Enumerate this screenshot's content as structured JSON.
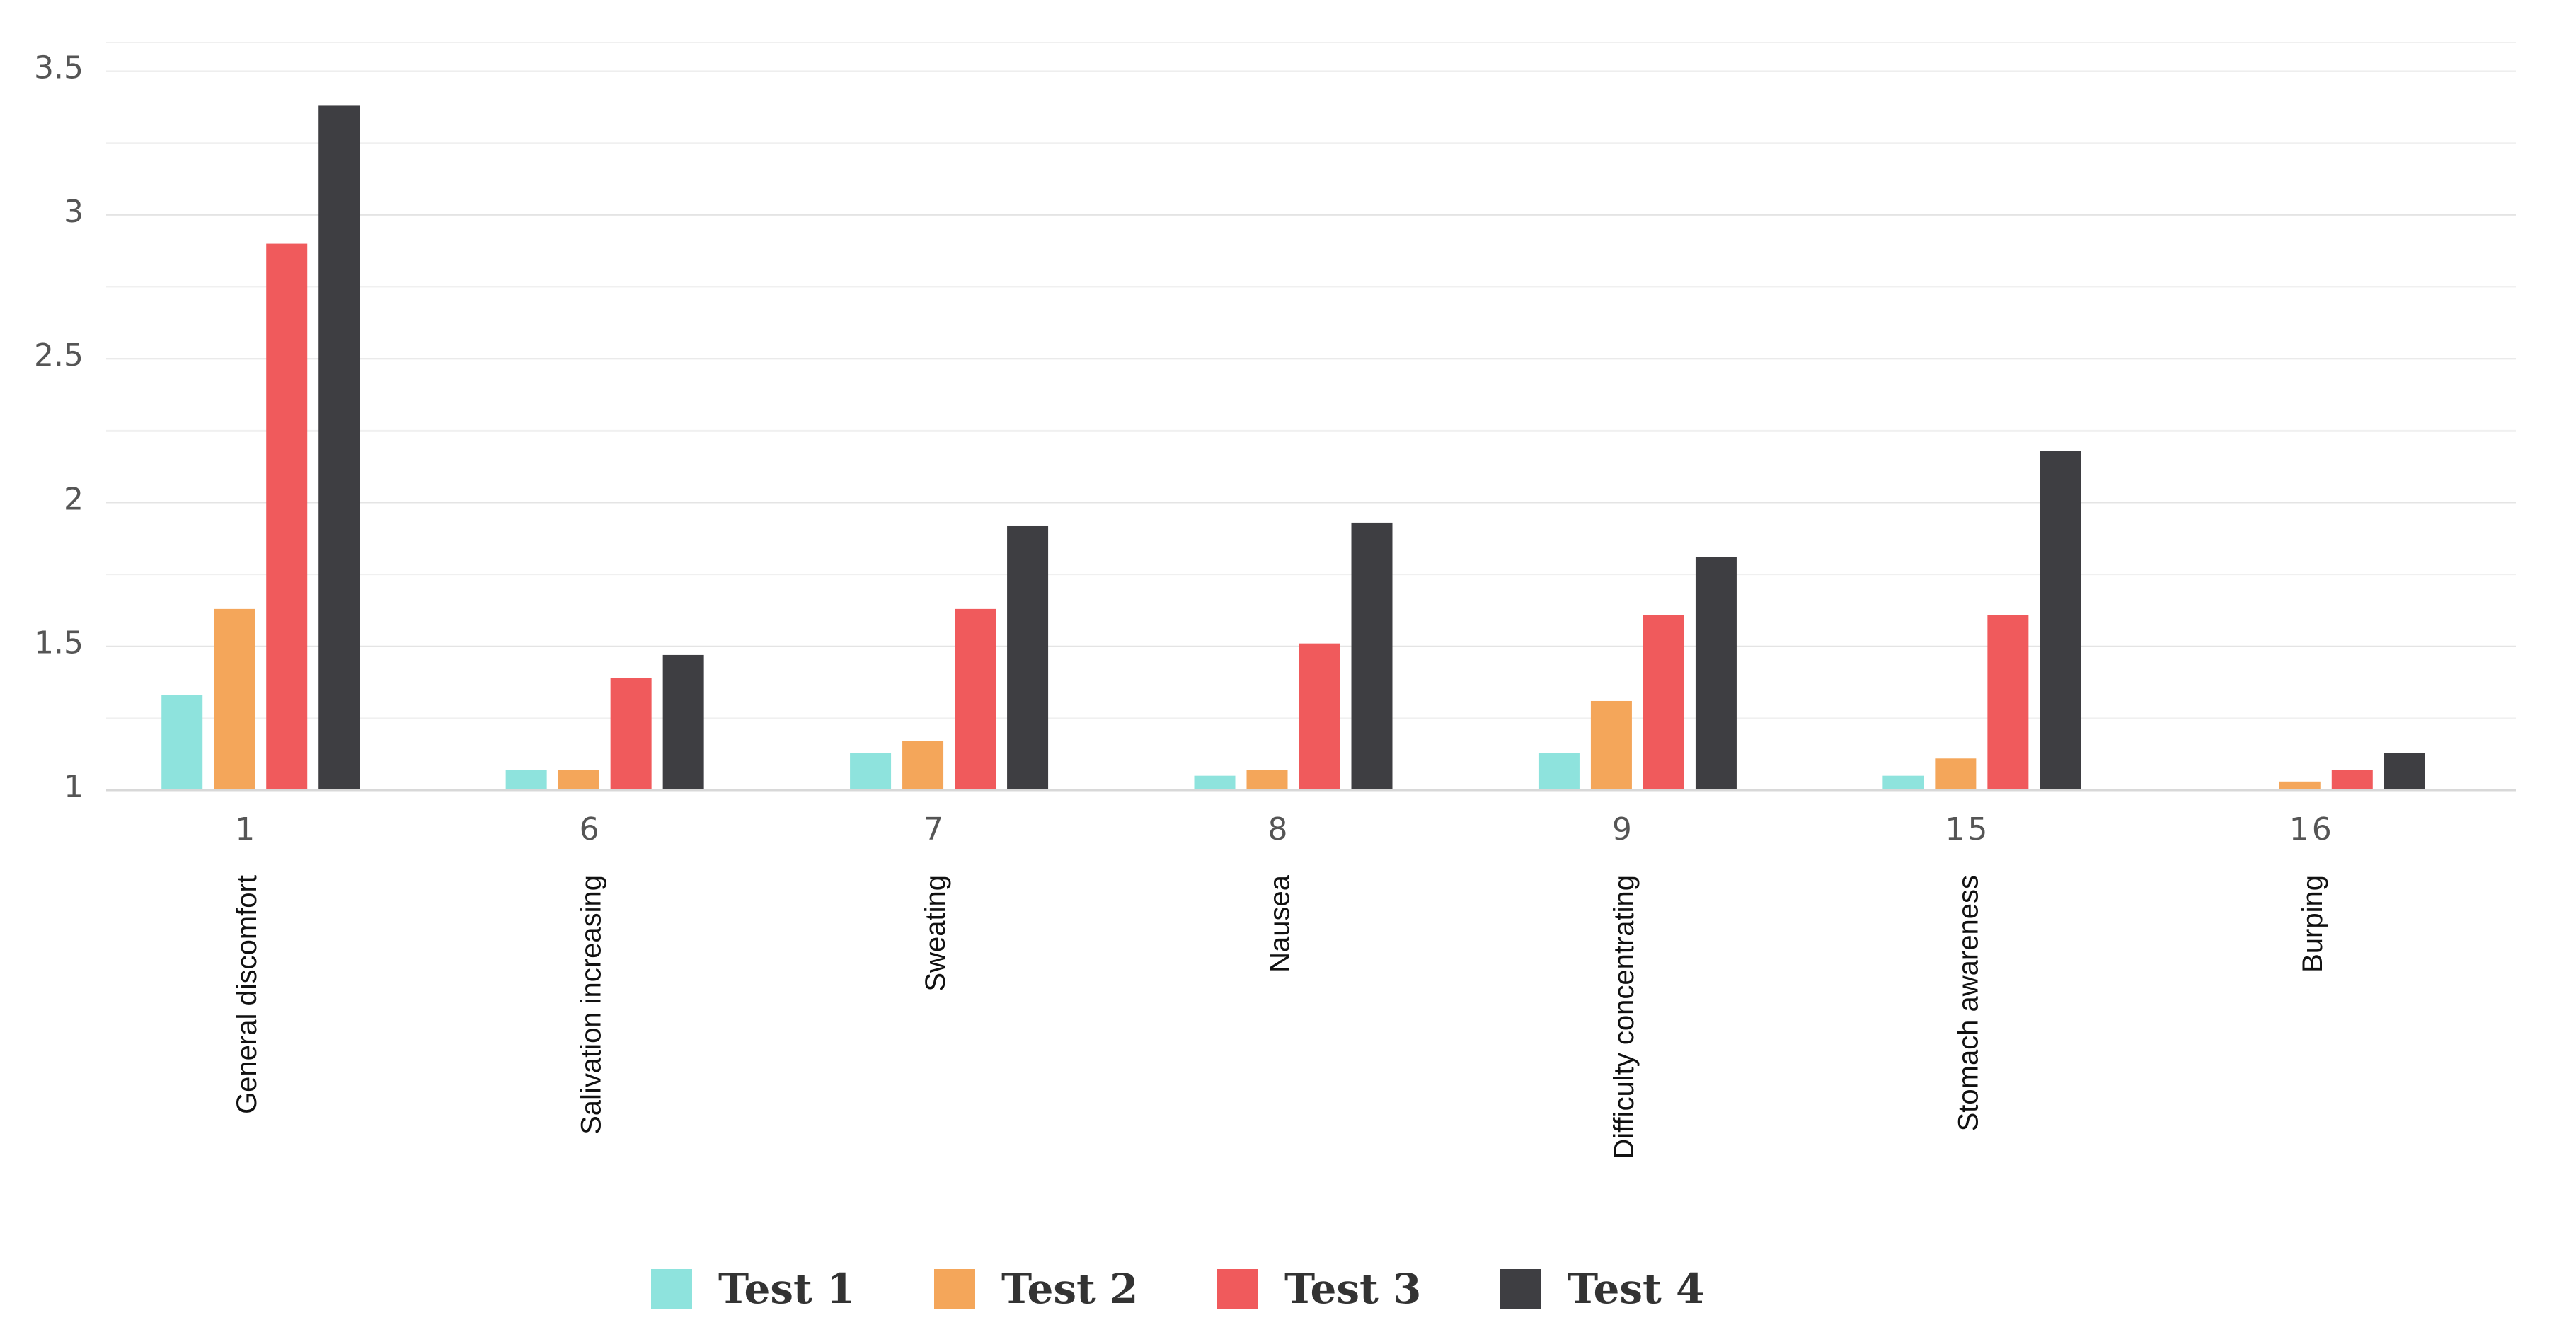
{
  "chart_data": {
    "type": "bar",
    "title": "",
    "xlabel": "",
    "ylabel": "",
    "ylim": [
      1,
      3.6
    ],
    "yticks": [
      "1",
      "1.5",
      "2",
      "2.5",
      "3",
      "3.5"
    ],
    "grid": true,
    "legend_position": "bottom-center",
    "categories": [
      "1",
      "6",
      "7",
      "8",
      "9",
      "15",
      "16"
    ],
    "category_names": [
      "General discomfort",
      "Salivation increasing",
      "Sweating",
      "Nausea",
      "Difficulty concentrating",
      "Stomach awareness",
      "Burping"
    ],
    "series": [
      {
        "name": "Test 1",
        "color": "#8ee3dd",
        "values": [
          1.33,
          1.07,
          1.13,
          1.05,
          1.13,
          1.05,
          1.0
        ]
      },
      {
        "name": "Test 2",
        "color": "#f4a65a",
        "values": [
          1.63,
          1.07,
          1.17,
          1.07,
          1.31,
          1.11,
          1.03
        ]
      },
      {
        "name": "Test 3",
        "color": "#f05a5c",
        "values": [
          2.9,
          1.39,
          1.63,
          1.51,
          1.61,
          1.61,
          1.07
        ]
      },
      {
        "name": "Test 4",
        "color": "#3e3e42",
        "values": [
          3.38,
          1.47,
          1.92,
          1.93,
          1.81,
          2.18,
          1.13
        ]
      }
    ]
  }
}
